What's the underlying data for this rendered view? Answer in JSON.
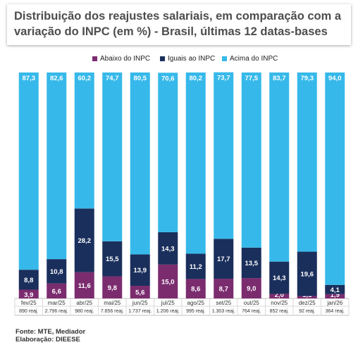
{
  "title": "Distribuição dos reajustes salariais, em comparação com a variação do INPC (em %) - Brasil, últimas 12 datas-bases",
  "colors": {
    "abaixo": "#7b2c6f",
    "iguais": "#1a2f5c",
    "acima": "#36b9ea"
  },
  "chart_data": {
    "type": "bar",
    "stacked": true,
    "percent_stacked": true,
    "categories": [
      "fev/25",
      "mar/25",
      "abr/25",
      "mai/25",
      "jun/25",
      "jul/25",
      "ago/25",
      "set/25",
      "out/25",
      "nov/25",
      "dez/25",
      "jan/26"
    ],
    "counts": [
      "890 reaj.",
      "2.796 reaj.",
      "980 reaj.",
      "7.656 reaj.",
      "1.737 reaj.",
      "1.206 reaj.",
      "995 reaj.",
      "1.303 reaj.",
      "764 reaj.",
      "852 reaj.",
      "92 reaj.",
      "364 reaj."
    ],
    "series": [
      {
        "name": "Abaixo do INPC",
        "values": [
          3.9,
          6.6,
          11.6,
          9.8,
          5.6,
          15.0,
          8.6,
          8.7,
          9.0,
          2.0,
          1.1,
          1.9
        ],
        "labels": [
          "3,9",
          "6,6",
          "11,6",
          "9,8",
          "5,6",
          "15,0",
          "8,6",
          "8,7",
          "9,0",
          "2,0",
          "1,1",
          "1,9"
        ]
      },
      {
        "name": "Iguais ao INPC",
        "values": [
          8.8,
          10.8,
          28.2,
          15.5,
          13.9,
          14.3,
          11.2,
          17.7,
          13.5,
          14.3,
          19.6,
          4.1
        ],
        "labels": [
          "8,8",
          "10,8",
          "28,2",
          "15,5",
          "13,9",
          "14,3",
          "11,2",
          "17,7",
          "13,5",
          "14,3",
          "19,6",
          "4,1"
        ]
      },
      {
        "name": "Acima do INPC",
        "values": [
          87.3,
          82.6,
          60.2,
          74.7,
          80.5,
          70.6,
          80.2,
          73.7,
          77.5,
          83.7,
          79.3,
          94.0
        ],
        "labels": [
          "87,3",
          "82,6",
          "60,2",
          "74,7",
          "80,5",
          "70,6",
          "80,2",
          "73,7",
          "77,5",
          "83,7",
          "79,3",
          "94,0"
        ]
      }
    ],
    "ylim": [
      0,
      100
    ],
    "legend_position": "top-right",
    "grid": false
  },
  "footer": {
    "source": "Fonte: MTE, Mediador",
    "credit": "Elaboração: DIEESE"
  }
}
